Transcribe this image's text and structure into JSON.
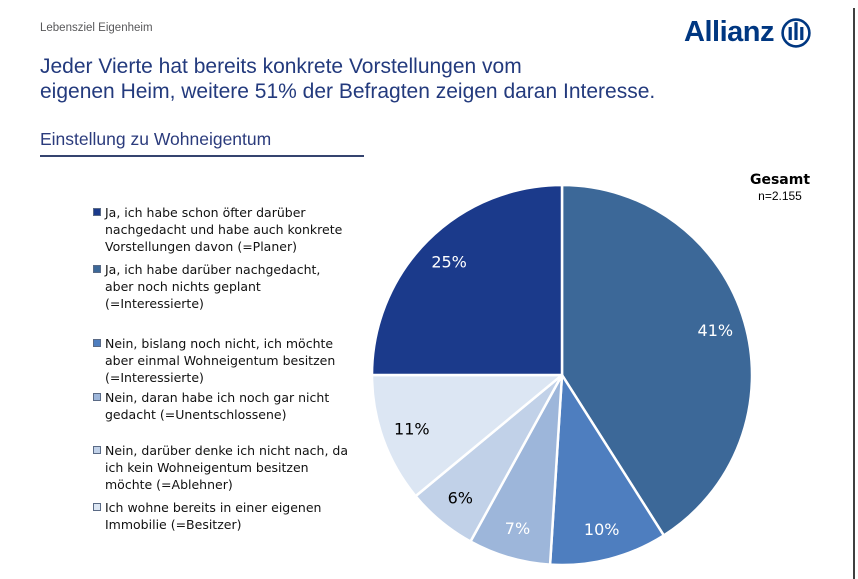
{
  "page": {
    "background": "#ffffff",
    "right_border_color": "#3f3f3f"
  },
  "header": {
    "eyebrow": "Lebensziel Eigenheim",
    "headline_line1": "Jeder Vierte hat bereits konkrete Vorstellungen vom",
    "headline_line2": "eigenen Heim, weitere 51% der Befragten zeigen daran Interesse.",
    "headline_color": "#233a7d",
    "logo_text": "Allianz",
    "logo_color": "#003781"
  },
  "section": {
    "title": "Einstellung zu Wohneigentum"
  },
  "stats": {
    "group_label": "Gesamt",
    "n_label": "n=2.155"
  },
  "legend": {
    "items": [
      {
        "label": "Ja, ich habe schon öfter darüber nachgedacht und habe auch konkrete Vorstellungen davon (=Planer)",
        "color": "#1b3a8b"
      },
      {
        "label": "Ja, ich habe darüber nachgedacht, aber noch nichts geplant (=Interessierte)",
        "color": "#3c6898"
      },
      {
        "label": "Nein, bislang noch nicht, ich möchte aber einmal Wohneigentum besitzen (=Interessierte)",
        "color": "#4e7ebf"
      },
      {
        "label": "Nein, daran habe ich noch gar nicht gedacht (=Unentschlossene)",
        "color": "#9db6da"
      },
      {
        "label": "Nein, darüber denke ich nicht nach, da ich kein Wohneigentum besitzen möchte (=Ablehner)",
        "color": "#c1d1e8"
      },
      {
        "label": "Ich wohne bereits in einer eigenen Immobilie (=Besitzer)",
        "color": "#dce6f3"
      }
    ]
  },
  "chart_data": {
    "type": "pie",
    "title": "Einstellung zu Wohneigentum",
    "group_label": "Gesamt",
    "n_label": "n=2.155",
    "start_angle_deg": 0,
    "direction": "clockwise",
    "legend_position": "left",
    "segments": [
      {
        "label": "Ja, ich habe darüber nachgedacht, aber noch nichts geplant (=Interessierte)",
        "value": 41,
        "pct_label": "41%",
        "color": "#3c6898",
        "label_color": "#ffffff"
      },
      {
        "label": "Nein, bislang noch nicht, ich möchte aber einmal Wohneigentum besitzen (=Interessierte)",
        "value": 10,
        "pct_label": "10%",
        "color": "#4e7ebf",
        "label_color": "#ffffff"
      },
      {
        "label": "Nein, daran habe ich noch gar nicht gedacht (=Unentschlossene)",
        "value": 7,
        "pct_label": "7%",
        "color": "#9db6da",
        "label_color": "#ffffff"
      },
      {
        "label": "Nein, darüber denke ich nicht nach, da ich kein Wohneigentum besitzen möchte (=Ablehner)",
        "value": 6,
        "pct_label": "6%",
        "color": "#c1d1e8",
        "label_color": "#000000"
      },
      {
        "label": "Ich wohne bereits in einer eigenen Immobilie (=Besitzer)",
        "value": 11,
        "pct_label": "11%",
        "color": "#dce6f3",
        "label_color": "#000000"
      },
      {
        "label": "Ja, ich habe schon öfter darüber nachgedacht und habe auch konkrete Vorstellungen davon (=Planer)",
        "value": 25,
        "pct_label": "25%",
        "color": "#1b3a8b",
        "label_color": "#ffffff"
      }
    ]
  }
}
